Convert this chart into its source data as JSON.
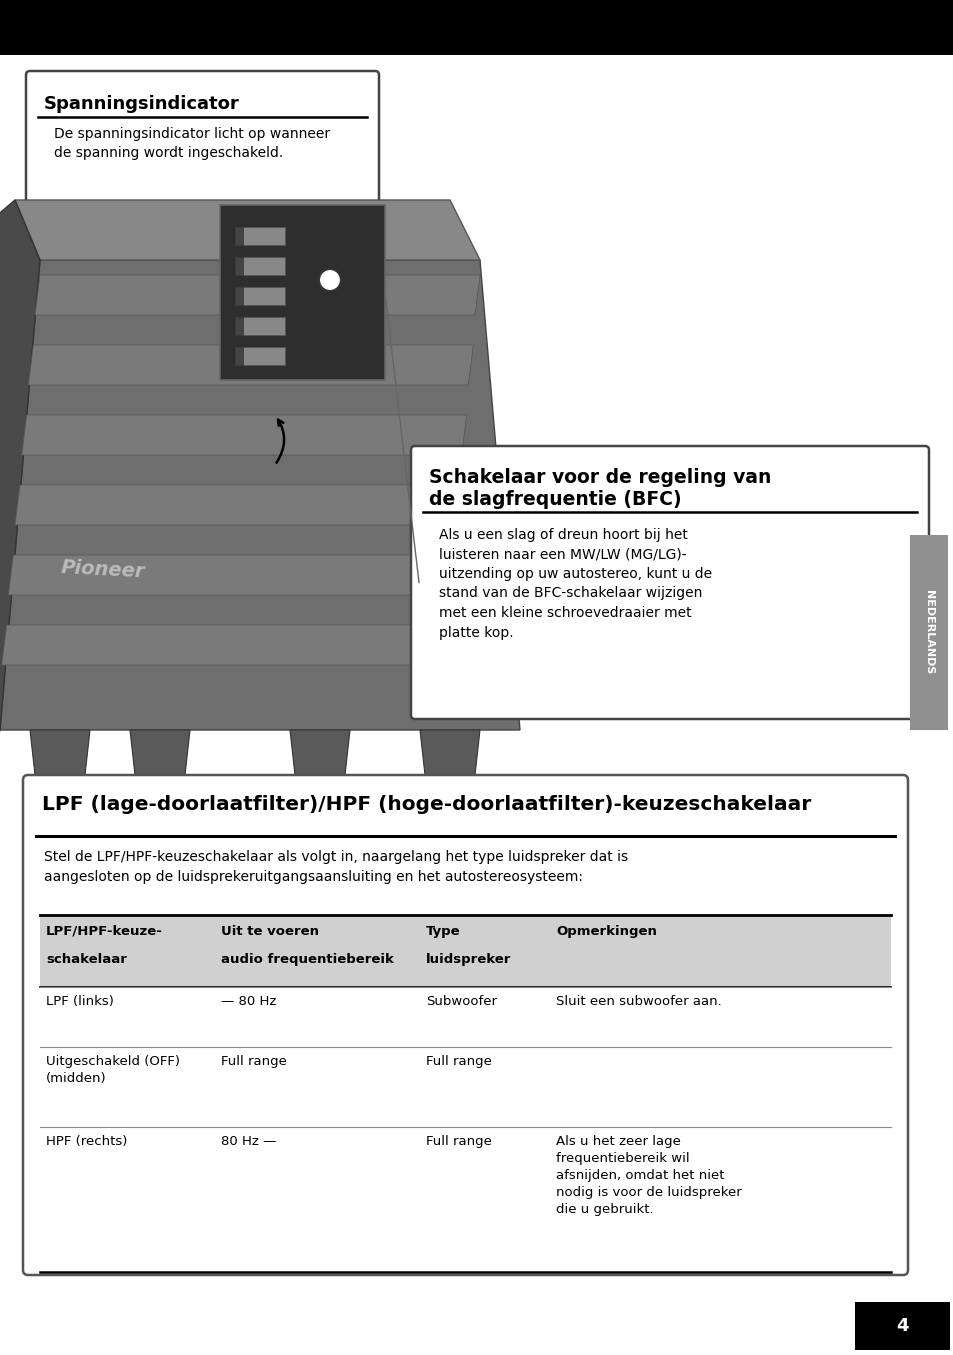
{
  "page_bg": "#ffffff",
  "top_bar_color": "#000000",
  "box1_title": "Spanningsindicator",
  "box1_body": "De spanningsindicator licht op wanneer\nde spanning wordt ingeschakeld.",
  "box2_title": "Schakelaar voor de regeling van\nde slagfrequentie (BFC)",
  "box2_body": "Als u een slag of dreun hoort bij het\nluisteren naar een MW/LW (MG/LG)-\nuitzending op uw autostereo, kunt u de\nstand van de BFC-schakelaar wijzigen\nmet een kleine schroevedraaier met\nplatte kop.",
  "box3_title": "LPF (lage-doorlaatfilter)/HPF (hoge-doorlaatfilter)-keuzeschakelaar",
  "box3_intro": "Stel de LPF/HPF-keuzeschakelaar als volgt in, naargelang het type luidspreker dat is\naangesloten op de luidsprekeruitgangsaansluiting en het autostereosysteem:",
  "table_header_col1_line1": "LPF/HPF-keuze-",
  "table_header_col1_line2": "schakelaar",
  "table_header_col2_line1": "Uit te voeren",
  "table_header_col2_line2": "audio frequentiebereik",
  "table_header_col3_line1": "Type",
  "table_header_col3_line2": "luidspreker",
  "table_header_col4_line1": "Opmerkingen",
  "table_header_col4_line2": "",
  "row1_c1": "LPF (links)",
  "row1_c2": "— 80 Hz",
  "row1_c3": "Subwoofer",
  "row1_c4": "Sluit een subwoofer aan.",
  "row2_c1": "Uitgeschakeld (OFF)\n(midden)",
  "row2_c2": "Full range",
  "row2_c3": "Full range",
  "row2_c4": "",
  "row3_c1": "HPF (rechts)",
  "row3_c2": "80 Hz —",
  "row3_c3": "Full range",
  "row3_c4": "Als u het zeer lage\nfrequentiebereik wil\nafsnijden, omdat het niet\nnodig is voor de luidspreker\ndie u gebruikt.",
  "sidebar_text": "NEDERLANDS",
  "page_number": "4"
}
